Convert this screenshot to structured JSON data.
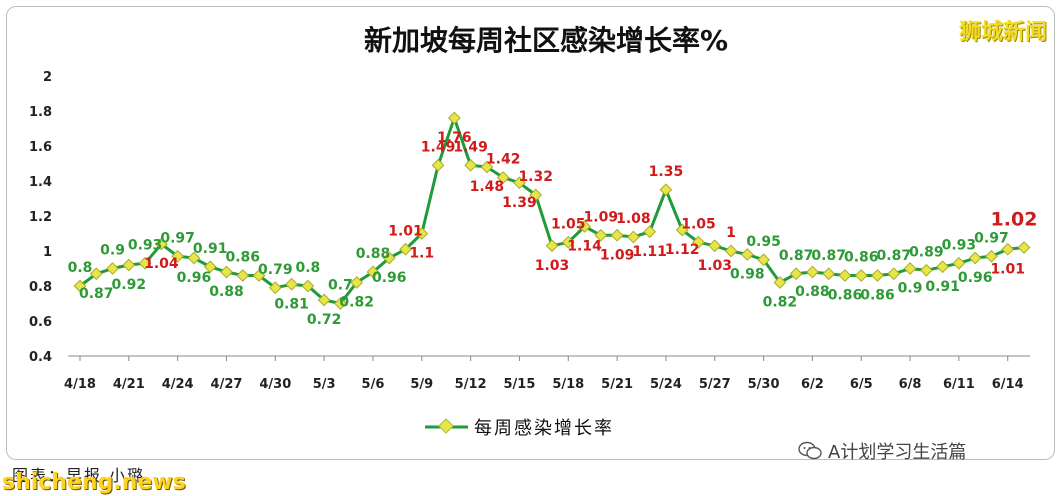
{
  "watermark": "狮城新闻",
  "footer_credit": "图表：早报 小璐",
  "footer_site": "shicheng.news",
  "footer_account": "A计划学习生活篇",
  "colors": {
    "line": "#1f9b3a",
    "marker": "#e6e64a",
    "red_label": "#d11a1a",
    "green_label": "#2e9a36",
    "grid": "#e0e0e0"
  },
  "chart_data": {
    "type": "line",
    "title": "新加坡每周社区感染增长率%",
    "legend": {
      "label": "每周感染增长率",
      "placement": "bottom"
    },
    "ylim": [
      0.4,
      2
    ],
    "yticks": [
      "0.4",
      "0.6",
      "0.8",
      "1",
      "1.2",
      "1.4",
      "1.6",
      "1.8",
      "2"
    ],
    "xticks": [
      "4/18",
      "4/21",
      "4/24",
      "4/27",
      "4/30",
      "5/3",
      "5/6",
      "5/9",
      "5/12",
      "5/15",
      "5/18",
      "5/21",
      "5/24",
      "5/27",
      "5/30",
      "6/2",
      "6/5",
      "6/8",
      "6/11",
      "6/14"
    ],
    "grid": false,
    "values": [
      0.8,
      0.87,
      0.9,
      0.92,
      0.93,
      1.04,
      0.97,
      0.96,
      0.91,
      0.88,
      0.86,
      0.86,
      0.79,
      0.81,
      0.8,
      0.72,
      0.7,
      0.82,
      0.88,
      0.96,
      1.01,
      1.1,
      1.49,
      1.76,
      1.49,
      1.48,
      1.42,
      1.39,
      1.32,
      1.03,
      1.05,
      1.14,
      1.09,
      1.09,
      1.08,
      1.11,
      1.35,
      1.12,
      1.05,
      1.03,
      1.0,
      0.98,
      0.95,
      0.82,
      0.87,
      0.88,
      0.87,
      0.86,
      0.86,
      0.86,
      0.87,
      0.9,
      0.89,
      0.91,
      0.93,
      0.96,
      0.97,
      1.01,
      1.02
    ],
    "labels": [
      "0.8",
      "0.87",
      "0.9",
      "0.92",
      "0.93",
      "1.04",
      "0.97",
      "0.96",
      "0.91",
      "0.88",
      "0.86",
      "",
      "0.79",
      "0.81",
      "0.8",
      "0.72",
      "0.7",
      "0.82",
      "0.88",
      "0.96",
      "1.01",
      "1.1",
      "1.49",
      "1.76",
      "1.49",
      "1.48",
      "1.42",
      "1.39",
      "1.32",
      "1.03",
      "1.05",
      "1.14",
      "1.09",
      "1.09",
      "1.08",
      "1.11",
      "1.35",
      "1.12",
      "1.05",
      "1.03",
      "1",
      "0.98",
      "0.95",
      "0.82",
      "0.87",
      "0.88",
      "0.87",
      "0.86",
      "0.86",
      "0.86",
      "0.87",
      "0.9",
      "0.89",
      "0.91",
      "0.93",
      "0.96",
      "0.97",
      "1.01",
      "1.02"
    ]
  }
}
